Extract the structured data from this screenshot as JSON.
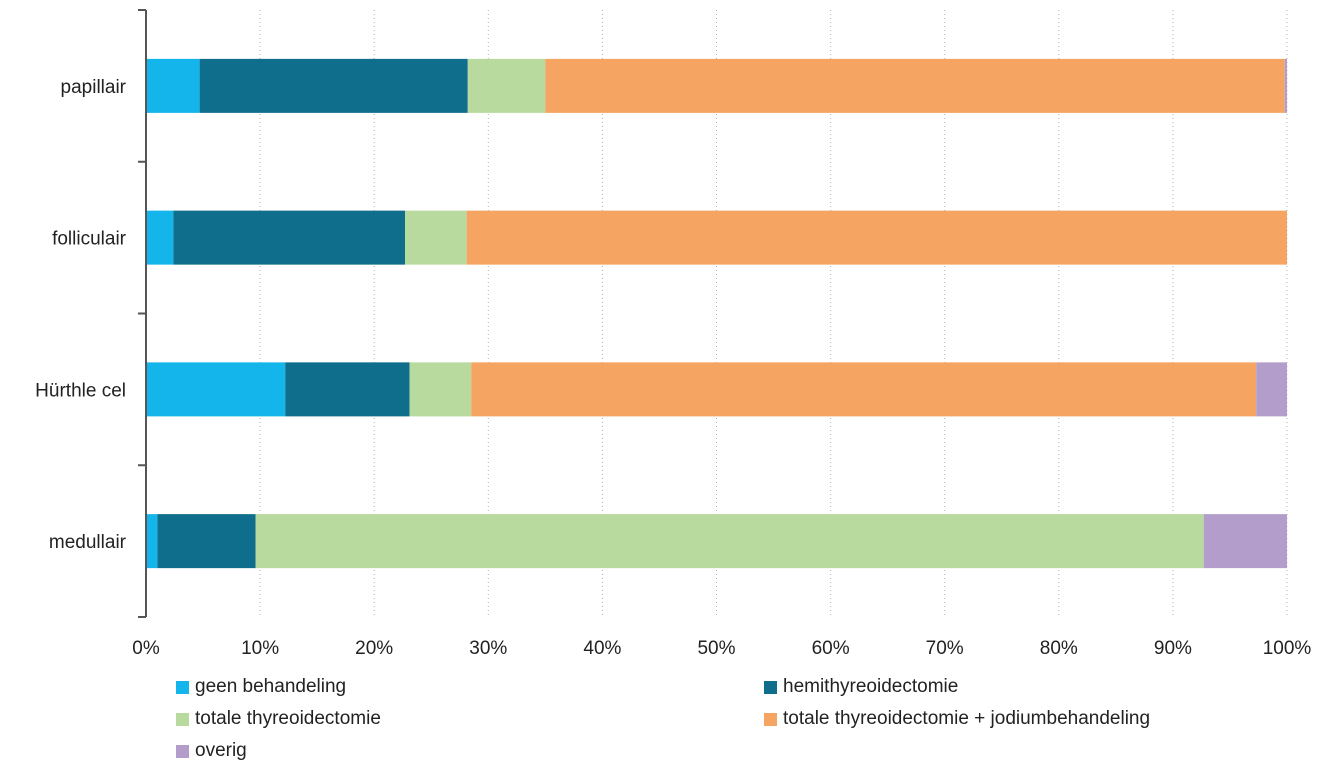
{
  "chart_data": {
    "type": "bar",
    "orientation": "horizontal",
    "stacked": true,
    "title": "",
    "xlabel": "",
    "ylabel": "",
    "xlim": [
      0,
      100
    ],
    "x_ticks": [
      "0%",
      "10%",
      "20%",
      "30%",
      "40%",
      "50%",
      "60%",
      "70%",
      "80%",
      "90%",
      "100%"
    ],
    "grid": "vertical dotted",
    "legend_position": "bottom",
    "categories": [
      "papillair",
      "folliculair",
      "Hürthle cel",
      "medullair"
    ],
    "series": [
      {
        "name": "geen behandeling",
        "color": "#13b5ea",
        "values": [
          4.7,
          2.4,
          12.2,
          1.0
        ]
      },
      {
        "name": "hemithyreoidectomie",
        "color": "#0e6e8c",
        "values": [
          23.5,
          20.3,
          10.9,
          8.6
        ]
      },
      {
        "name": "totale thyreoidectomie",
        "color": "#b8da9f",
        "values": [
          6.8,
          5.4,
          5.4,
          83.1
        ]
      },
      {
        "name": "totale thyreoidectomie + jodiumbehandeling",
        "color": "#f5a462",
        "values": [
          64.8,
          71.9,
          68.8,
          0.0
        ]
      },
      {
        "name": "overig",
        "color": "#b39dca",
        "values": [
          0.2,
          0.0,
          2.7,
          7.3
        ]
      }
    ]
  }
}
